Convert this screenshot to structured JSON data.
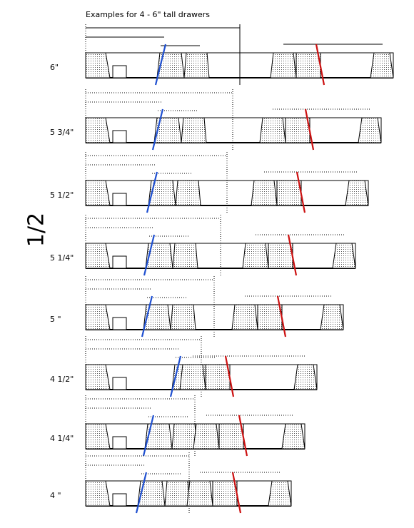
{
  "title": "Examples for 4 - 6\" tall drawers",
  "side_label": "1/2",
  "rows": [
    {
      "label": "6\""
    },
    {
      "label": "5 3/4\""
    },
    {
      "label": "5 1/2\""
    },
    {
      "label": "5 1/4\""
    },
    {
      "label": "5 \""
    },
    {
      "label": "4 1/2\""
    },
    {
      "label": "4 1/4\""
    },
    {
      "label": "4 \""
    }
  ]
}
